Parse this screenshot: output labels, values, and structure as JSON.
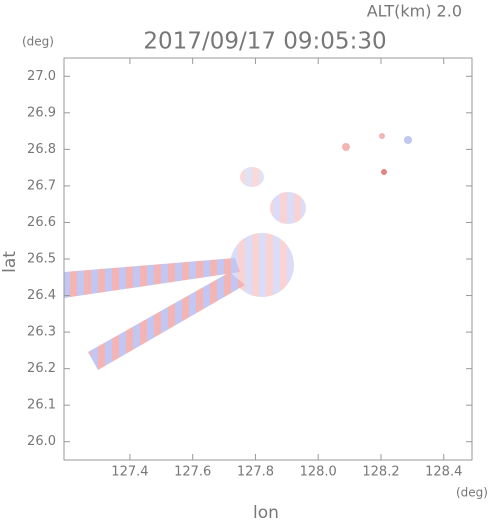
{
  "chart_data": {
    "type": "map",
    "title": "2017/09/17 09:05:30",
    "subtitle": "ALT(km)  2.0",
    "xlabel": "lon",
    "ylabel": "lat",
    "xunit": "(deg)",
    "yunit": "(deg)",
    "xlim": [
      127.19,
      128.49
    ],
    "ylim": [
      25.95,
      27.05
    ],
    "xticks": [
      127.4,
      127.6,
      127.8,
      {
        "value": 128,
        "label": "128.0"
      },
      128.2,
      128.4
    ],
    "yticks": [
      {
        "value": 26,
        "label": "26.0"
      },
      26.1,
      26.2,
      26.3,
      26.4,
      26.5,
      26.6,
      26.7,
      26.8,
      26.9,
      {
        "value": 27,
        "label": "27.0"
      }
    ]
  }
}
